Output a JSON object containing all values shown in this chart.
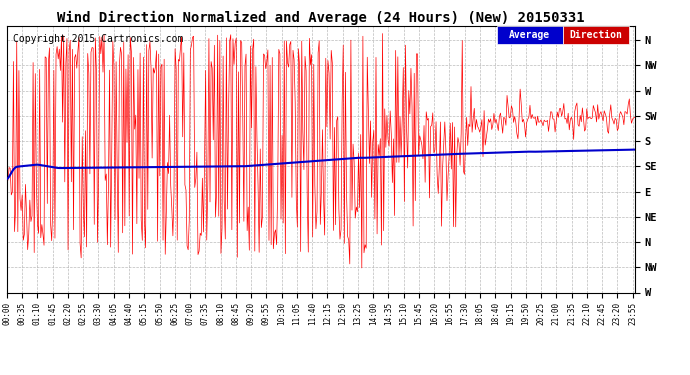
{
  "title": "Wind Direction Normalized and Average (24 Hours) (New) 20150331",
  "copyright": "Copyright 2015 Cartronics.com",
  "background_color": "#ffffff",
  "plot_bg_color": "#ffffff",
  "grid_color": "#aaaaaa",
  "ytick_labels": [
    "N",
    "NW",
    "W",
    "SW",
    "S",
    "SE",
    "E",
    "NE",
    "N",
    "NW",
    "W"
  ],
  "ytick_values": [
    360,
    315,
    270,
    225,
    180,
    135,
    90,
    45,
    0,
    -45,
    -90
  ],
  "ylim": [
    -90,
    385
  ],
  "legend_avg_color": "#0000cc",
  "legend_dir_color": "#cc0000",
  "legend_avg_label": "Average",
  "legend_dir_label": "Direction",
  "line_color_red": "#ff0000",
  "line_color_blue": "#0000cc",
  "title_fontsize": 10,
  "copyright_fontsize": 7,
  "tick_fontsize": 7.5,
  "xtick_fontsize": 5.5
}
